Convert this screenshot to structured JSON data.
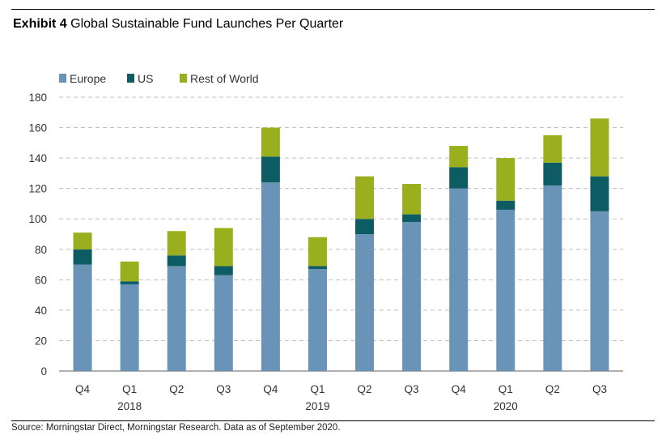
{
  "header": {
    "label": "Exhibit 4",
    "title": "Global Sustainable Fund Launches Per Quarter"
  },
  "footer": {
    "source": "Source: Morningstar Direct, Morningstar Research. Data as of September 2020."
  },
  "colors": {
    "europe": "#6a93b8",
    "us": "#0d5c63",
    "rest_of_world": "#9aaf1d",
    "gridline": "#bfbfbf"
  },
  "chart_data": {
    "type": "bar",
    "stacked": true,
    "title": "Global Sustainable Fund Launches Per Quarter",
    "categories": [
      "Q4",
      "Q1",
      "Q2",
      "Q3",
      "Q4",
      "Q1",
      "Q2",
      "Q3",
      "Q4",
      "Q1",
      "Q2",
      "Q3"
    ],
    "year_labels": [
      {
        "label": "2018",
        "category_index": 1
      },
      {
        "label": "2019",
        "category_index": 5
      },
      {
        "label": "2020",
        "category_index": 9
      }
    ],
    "series": [
      {
        "name": "Europe",
        "values": [
          70,
          57,
          69,
          63,
          124,
          67,
          90,
          98,
          120,
          106,
          122,
          105
        ]
      },
      {
        "name": "US",
        "values": [
          10,
          2,
          7,
          6,
          17,
          2,
          10,
          5,
          14,
          6,
          15,
          23
        ]
      },
      {
        "name": "Rest of World",
        "values": [
          11,
          13,
          16,
          25,
          19,
          19,
          28,
          20,
          14,
          28,
          18,
          38
        ]
      }
    ],
    "yticks": [
      0,
      20,
      40,
      60,
      80,
      100,
      120,
      140,
      160,
      180
    ],
    "ylim": [
      0,
      180
    ],
    "xlabel": "",
    "ylabel": "",
    "grid": "horizontal dashed",
    "legend_position": "top-left"
  }
}
